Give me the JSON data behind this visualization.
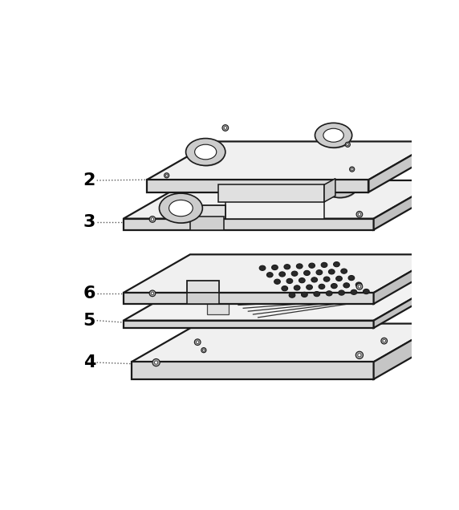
{
  "background_color": "#ffffff",
  "line_color": "#1a1a1a",
  "lw_main": 1.6,
  "lw_thin": 0.8,
  "color_top": "#f5f5f5",
  "color_side_front": "#e0e0e0",
  "color_side_right": "#d0d0d0",
  "color_slot": "#ffffff",
  "color_dark": "#333333",
  "color_screw": "#888888",
  "labels": [
    "2",
    "3",
    "6",
    "5",
    "4"
  ],
  "sx": 0.38,
  "sy": 0.22,
  "figsize": [
    5.72,
    6.36
  ],
  "dpi": 100
}
